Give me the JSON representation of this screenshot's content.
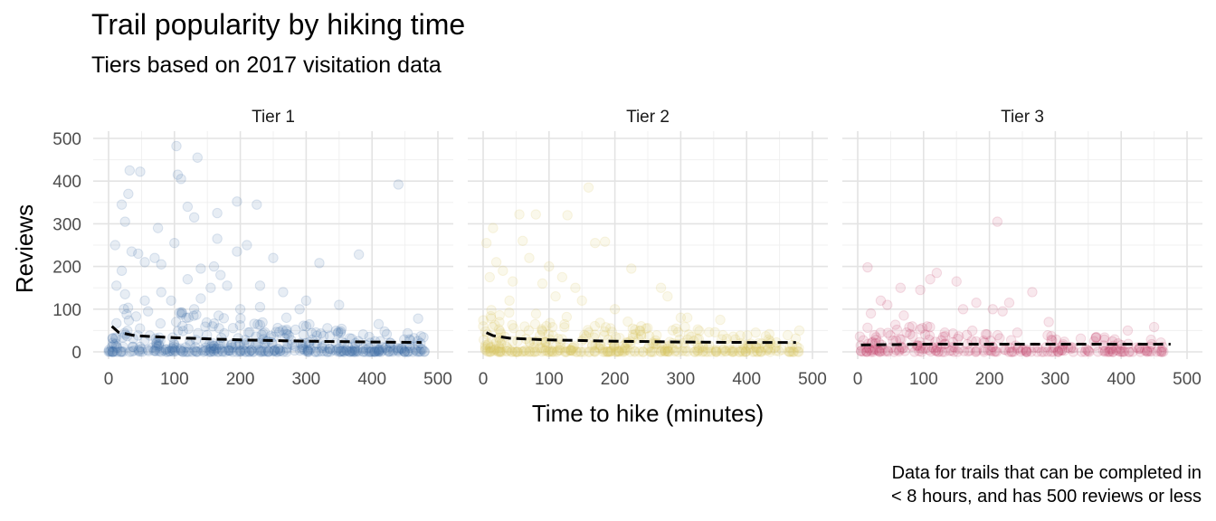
{
  "title": "Trail popularity by hiking time",
  "subtitle": "Tiers based on 2017 visitation data",
  "caption_line1": "Data for trails that can be completed in",
  "caption_line2": "< 8 hours, and has 500 reviews or less",
  "chart_data": {
    "type": "scatter",
    "xlabel": "Time to hike (minutes)",
    "ylabel": "Reviews",
    "xlim": [
      0,
      500
    ],
    "ylim": [
      0,
      500
    ],
    "x_ticks": [
      0,
      100,
      200,
      300,
      400,
      500
    ],
    "y_ticks": [
      0,
      100,
      200,
      300,
      400,
      500
    ],
    "grid": true,
    "point_opacity": 0.12,
    "trend_style": "black dashed",
    "panels": [
      {
        "name": "Tier 1",
        "color": "#3a6aa5",
        "trend": [
          [
            5,
            60
          ],
          [
            15,
            46
          ],
          [
            40,
            38
          ],
          [
            100,
            33
          ],
          [
            200,
            28
          ],
          [
            300,
            25
          ],
          [
            400,
            23
          ],
          [
            475,
            22
          ]
        ],
        "outliers": [
          [
            103,
            482
          ],
          [
            32,
            425
          ],
          [
            48,
            422
          ],
          [
            105,
            415
          ],
          [
            135,
            455
          ],
          [
            440,
            392
          ],
          [
            110,
            405
          ],
          [
            130,
            315
          ],
          [
            30,
            370
          ],
          [
            20,
            345
          ],
          [
            25,
            305
          ],
          [
            120,
            340
          ],
          [
            165,
            325
          ],
          [
            195,
            352
          ],
          [
            225,
            345
          ],
          [
            210,
            250
          ],
          [
            195,
            235
          ],
          [
            165,
            265
          ],
          [
            100,
            255
          ],
          [
            75,
            290
          ],
          [
            10,
            250
          ],
          [
            20,
            190
          ],
          [
            35,
            235
          ],
          [
            45,
            230
          ],
          [
            55,
            210
          ],
          [
            70,
            220
          ],
          [
            80,
            205
          ],
          [
            120,
            170
          ],
          [
            140,
            195
          ],
          [
            160,
            200
          ],
          [
            170,
            180
          ],
          [
            250,
            220
          ],
          [
            320,
            208
          ],
          [
            380,
            228
          ],
          [
            180,
            155
          ],
          [
            230,
            155
          ],
          [
            265,
            140
          ],
          [
            300,
            120
          ],
          [
            350,
            110
          ],
          [
            290,
            100
          ],
          [
            230,
            105
          ],
          [
            200,
            100
          ],
          [
            12,
            155
          ],
          [
            25,
            135
          ],
          [
            55,
            120
          ],
          [
            80,
            140
          ],
          [
            95,
            120
          ],
          [
            140,
            125
          ],
          [
            155,
            150
          ],
          [
            470,
            78
          ],
          [
            410,
            65
          ],
          [
            270,
            80
          ],
          [
            130,
            100
          ],
          [
            60,
            95
          ]
        ],
        "bulk": {
          "count": 420,
          "x_max": 480,
          "y_max": 110,
          "seed": 11
        }
      },
      {
        "name": "Tier 2",
        "color": "#d9c45c",
        "trend": [
          [
            5,
            45
          ],
          [
            15,
            38
          ],
          [
            40,
            32
          ],
          [
            100,
            28
          ],
          [
            200,
            25
          ],
          [
            300,
            23
          ],
          [
            400,
            22
          ],
          [
            475,
            22
          ]
        ],
        "outliers": [
          [
            160,
            385
          ],
          [
            55,
            322
          ],
          [
            80,
            322
          ],
          [
            128,
            320
          ],
          [
            15,
            290
          ],
          [
            5,
            255
          ],
          [
            60,
            260
          ],
          [
            185,
            258
          ],
          [
            170,
            255
          ],
          [
            225,
            195
          ],
          [
            20,
            210
          ],
          [
            30,
            190
          ],
          [
            70,
            220
          ],
          [
            100,
            200
          ],
          [
            120,
            175
          ],
          [
            10,
            175
          ],
          [
            45,
            165
          ],
          [
            90,
            160
          ],
          [
            140,
            150
          ],
          [
            270,
            150
          ],
          [
            280,
            130
          ],
          [
            300,
            80
          ],
          [
            360,
            75
          ],
          [
            310,
            80
          ],
          [
            150,
            120
          ],
          [
            200,
            100
          ],
          [
            40,
            120
          ],
          [
            110,
            130
          ],
          [
            240,
            60
          ],
          [
            480,
            50
          ]
        ],
        "bulk": {
          "count": 380,
          "x_max": 480,
          "y_max": 100,
          "seed": 23
        }
      },
      {
        "name": "Tier 3",
        "color": "#c5436a",
        "trend": [
          [
            5,
            16
          ],
          [
            100,
            18
          ],
          [
            200,
            18
          ],
          [
            300,
            18
          ],
          [
            400,
            18
          ],
          [
            475,
            18
          ]
        ],
        "outliers": [
          [
            212,
            305
          ],
          [
            15,
            198
          ],
          [
            120,
            185
          ],
          [
            150,
            165
          ],
          [
            110,
            170
          ],
          [
            65,
            150
          ],
          [
            95,
            145
          ],
          [
            265,
            140
          ],
          [
            205,
            100
          ],
          [
            180,
            115
          ],
          [
            220,
            95
          ],
          [
            230,
            115
          ],
          [
            35,
            120
          ],
          [
            45,
            110
          ],
          [
            160,
            100
          ],
          [
            290,
            70
          ],
          [
            410,
            50
          ],
          [
            450,
            58
          ],
          [
            20,
            90
          ],
          [
            70,
            85
          ]
        ],
        "bulk": {
          "count": 250,
          "x_max": 475,
          "y_max": 70,
          "seed": 37
        }
      }
    ]
  }
}
